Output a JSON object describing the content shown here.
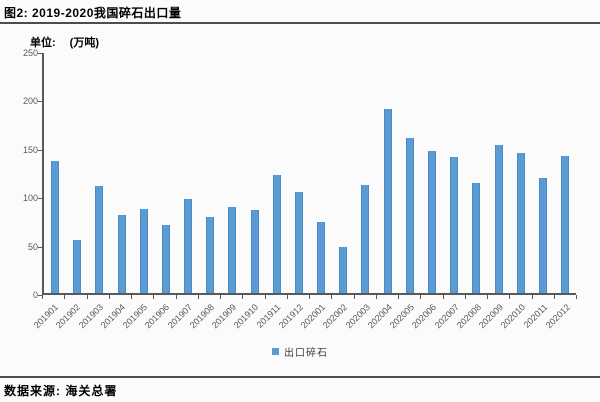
{
  "header": {
    "title": "图2:  2019-2020我国碎石出口量"
  },
  "unit": {
    "prefix": "单位:",
    "value": "(万吨)"
  },
  "chart_data": {
    "type": "bar",
    "title": "2019-2020我国碎石出口量",
    "categories": [
      "201901",
      "201902",
      "201903",
      "201904",
      "201905",
      "201906",
      "201907",
      "201908",
      "201909",
      "201910",
      "201911",
      "201912",
      "202001",
      "202002",
      "202003",
      "202004",
      "202005",
      "202006",
      "202007",
      "202008",
      "202009",
      "202010",
      "202011",
      "202012"
    ],
    "values": [
      137,
      55,
      111,
      81,
      87,
      71,
      98,
      79,
      90,
      86,
      123,
      105,
      74,
      48,
      113,
      192,
      161,
      148,
      142,
      115,
      154,
      146,
      120,
      143
    ],
    "series_name": "出口碎石",
    "xlabel": "",
    "ylabel": "万吨",
    "ylim": [
      0,
      250
    ],
    "yticks": [
      0,
      50,
      100,
      150,
      200,
      250
    ],
    "bar_color": "#5b9bd5",
    "grid": false,
    "legend_position": "bottom"
  },
  "legend": {
    "label": "出口碎石",
    "marker_color": "#5b9bd5"
  },
  "footer": {
    "source": "数据来源: 海关总署"
  }
}
